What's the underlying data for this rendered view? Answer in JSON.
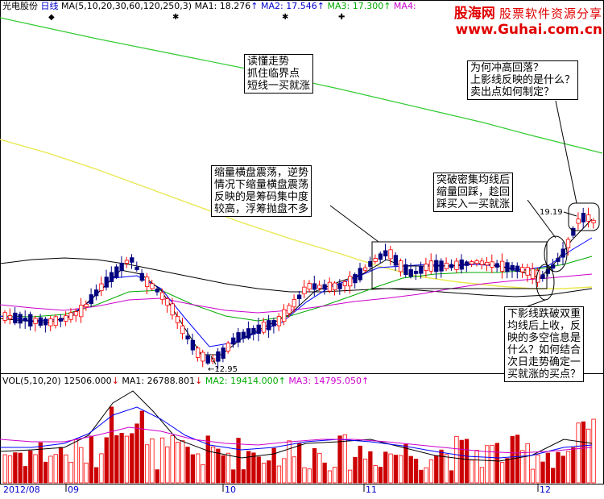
{
  "header": {
    "stock_name": "光电股份",
    "period": "日线",
    "ma_params": "MA(5,10,20,30,60,120,250,3)",
    "ma1_label": "MA1:",
    "ma1_value": "18.276",
    "ma2_label": "MA2:",
    "ma2_value": "17.546",
    "ma3_label": "MA3:",
    "ma3_value": "17.300",
    "ma4_label": "MA4:",
    "up_arrow": "↑",
    "down_arrow": "↓"
  },
  "logo": {
    "name": "股海网",
    "slogan": "股票软件资源分享",
    "url": "www.Guhai.com.cn"
  },
  "notes": {
    "note1": [
      "读懂走势",
      "抓住临界点",
      "短线一买就涨"
    ],
    "note2": [
      "缩量横盘震荡，逆势",
      "情况下缩量横盘震荡",
      "反映的是筹码集中度",
      "较高，浮筹抛盘不多"
    ],
    "note3": [
      "为何冲高回落？",
      "上影线反映的是什么？",
      "卖出点如何制定？"
    ],
    "note4": [
      "突破密集均线后",
      "缩量回踩，趁回",
      "踩买入一买就涨"
    ],
    "note5": [
      "下影线跌破双重",
      "均线后上收，反",
      "映的多空信息是",
      "什么？如何结合",
      "次日走势确定一",
      "买就涨的买点？"
    ]
  },
  "price_labels": {
    "low": "12.95",
    "high": "19.19"
  },
  "volume_header": {
    "params": "VOL(5,10,20)",
    "vol_value": "12506.000",
    "ma1_label": "MA1:",
    "ma1_value": "26788.801",
    "ma2_label": "MA2:",
    "ma2_value": "19414.000",
    "ma3_label": "MA3:",
    "ma3_value": "14795.050"
  },
  "date_axis": [
    "2012/08",
    "09",
    "10",
    "11",
    "12"
  ],
  "colors": {
    "up": "#ff0000",
    "down": "#000080",
    "down_bar_fill": "#cc0000",
    "ma1": "#000000",
    "ma2": "#0000ff",
    "ma3": "#00aa00",
    "ma4": "#cc00cc",
    "ma_long_green": "#33cc33",
    "ma_long_yellow": "#e8e850",
    "header_blue": "#0000cc",
    "header_green": "#00aa00",
    "header_magenta": "#cc00cc"
  }
}
